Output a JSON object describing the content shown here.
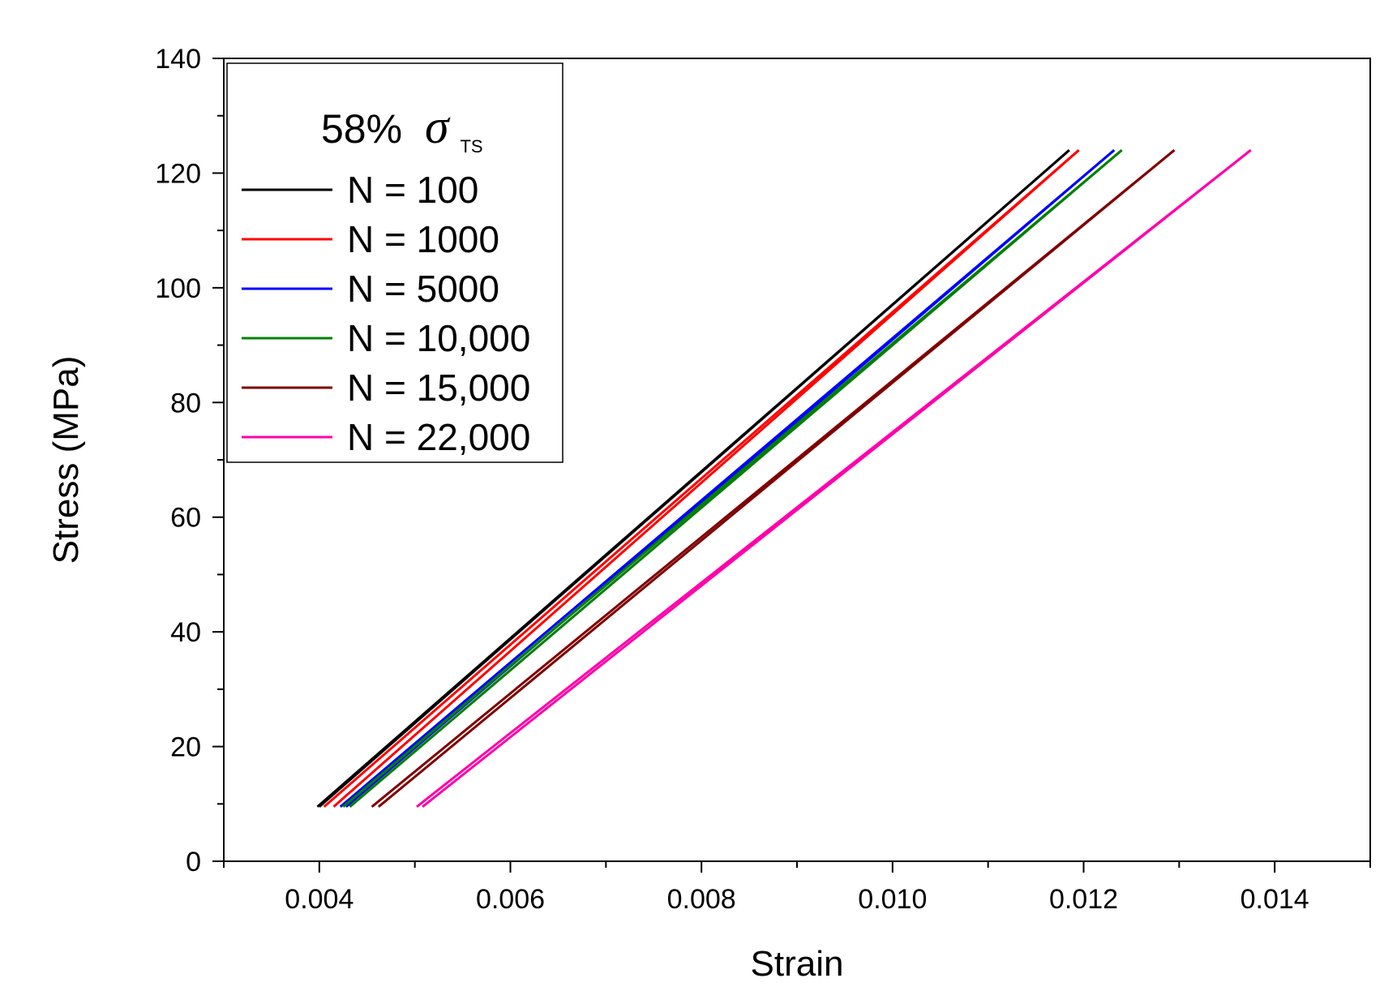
{
  "chart_data": {
    "type": "line",
    "title": "",
    "xlabel": "Strain",
    "ylabel": "Stress (MPa)",
    "xlim": [
      0.003,
      0.015
    ],
    "ylim": [
      0,
      140
    ],
    "xticks": [
      "0.004",
      "0.006",
      "0.008",
      "0.010",
      "0.012",
      "0.014"
    ],
    "yticks": [
      "0",
      "20",
      "40",
      "60",
      "80",
      "100",
      "120",
      "140"
    ],
    "grid": false,
    "legend": {
      "placement": "top-left",
      "title_prefix": "58%",
      "title_symbol": "σ",
      "title_subscript": "TS"
    },
    "series": [
      {
        "name": "N = 100",
        "color": "#000000",
        "loading": [
          [
            0.00398,
            9.5
          ],
          [
            0.01185,
            124
          ]
        ],
        "unloading": [
          [
            0.01185,
            124
          ],
          [
            0.004,
            9.5
          ]
        ]
      },
      {
        "name": "N = 1000",
        "color": "#ff0000",
        "loading": [
          [
            0.00405,
            9.5
          ],
          [
            0.01195,
            124
          ]
        ],
        "unloading": [
          [
            0.01195,
            124
          ],
          [
            0.00415,
            9.5
          ]
        ]
      },
      {
        "name": "N = 5000",
        "color": "#0000ff",
        "loading": [
          [
            0.00422,
            9.5
          ],
          [
            0.01232,
            124
          ]
        ],
        "unloading": [
          [
            0.01232,
            124
          ],
          [
            0.00428,
            9.5
          ]
        ]
      },
      {
        "name": "N = 10,000",
        "color": "#008000",
        "loading": [
          [
            0.00425,
            9.5
          ],
          [
            0.0124,
            124
          ]
        ],
        "unloading": [
          [
            0.0124,
            124
          ],
          [
            0.00432,
            9.5
          ]
        ]
      },
      {
        "name": "N = 15,000",
        "color": "#800000",
        "loading": [
          [
            0.00455,
            9.5
          ],
          [
            0.01295,
            124
          ]
        ],
        "unloading": [
          [
            0.01295,
            124
          ],
          [
            0.00462,
            9.5
          ]
        ]
      },
      {
        "name": "N = 22,000",
        "color": "#ff00aa",
        "loading": [
          [
            0.00502,
            9.5
          ],
          [
            0.01375,
            124
          ]
        ],
        "unloading": [
          [
            0.01375,
            124
          ],
          [
            0.00508,
            9.5
          ]
        ]
      }
    ]
  }
}
